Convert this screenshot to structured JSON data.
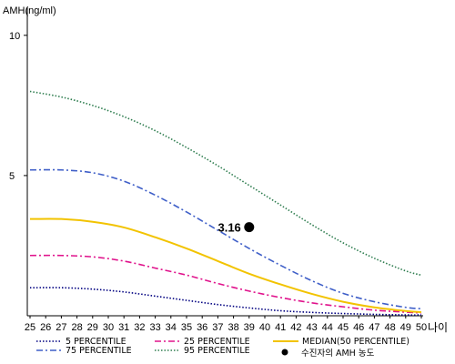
{
  "chart_data": {
    "type": "line",
    "ylabel": "AMH(ng/ml)",
    "xlabel": "나이",
    "xlim": [
      25,
      50
    ],
    "ylim": [
      0,
      11
    ],
    "x_ticks": [
      25,
      26,
      27,
      28,
      29,
      30,
      31,
      32,
      33,
      34,
      35,
      36,
      37,
      38,
      39,
      40,
      41,
      42,
      43,
      44,
      45,
      46,
      47,
      48,
      49,
      50
    ],
    "y_ticks": [
      5,
      10
    ],
    "x": [
      25,
      27,
      29,
      31,
      33,
      35,
      37,
      39,
      41,
      43,
      45,
      47,
      49,
      50
    ],
    "series": [
      {
        "name": "5 PERCENTILE",
        "color": "#000080",
        "dash": "dotted",
        "values": [
          1.0,
          1.0,
          0.95,
          0.85,
          0.7,
          0.55,
          0.4,
          0.28,
          0.18,
          0.12,
          0.08,
          0.05,
          0.03,
          0.03
        ]
      },
      {
        "name": "25 PERCENTILE",
        "color": "#e0138c",
        "dash": "dashdot",
        "values": [
          2.15,
          2.15,
          2.1,
          1.95,
          1.7,
          1.45,
          1.15,
          0.88,
          0.65,
          0.46,
          0.32,
          0.2,
          0.13,
          0.1
        ]
      },
      {
        "name": "MEDIAN(50 PERCENTILE)",
        "color": "#f2c300",
        "dash": "solid",
        "values": [
          3.45,
          3.45,
          3.35,
          3.15,
          2.8,
          2.4,
          1.95,
          1.5,
          1.12,
          0.78,
          0.5,
          0.3,
          0.17,
          0.13
        ]
      },
      {
        "name": "75 PERCENTILE",
        "color": "#3f5fc8",
        "dash": "dashdot",
        "values": [
          5.2,
          5.2,
          5.1,
          4.8,
          4.3,
          3.7,
          3.05,
          2.4,
          1.8,
          1.25,
          0.8,
          0.5,
          0.3,
          0.25
        ]
      },
      {
        "name": "95 PERCENTILE",
        "color": "#2e7d4f",
        "dash": "dotted",
        "values": [
          8.0,
          7.8,
          7.5,
          7.1,
          6.6,
          6.0,
          5.35,
          4.65,
          3.95,
          3.25,
          2.6,
          2.05,
          1.6,
          1.45
        ]
      }
    ],
    "patient_point": {
      "name": "수진자의 AMH 농도",
      "x": 39,
      "y": 3.16,
      "label": "3.16",
      "color": "#000000"
    },
    "legend_position": "bottom",
    "grid": false
  }
}
